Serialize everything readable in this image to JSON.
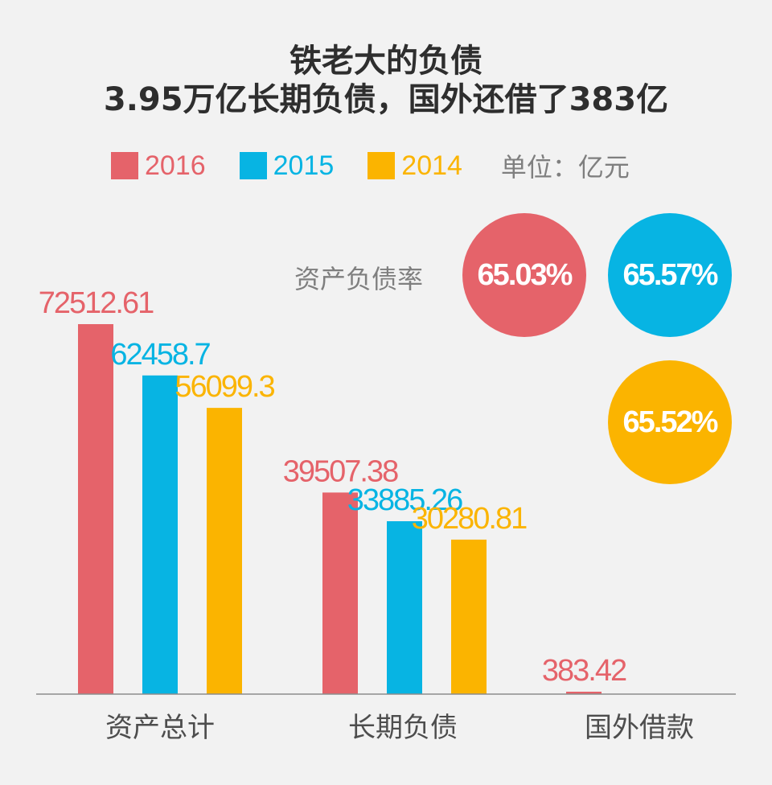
{
  "title": {
    "line1": "铁老大的负债",
    "line2": "3.95万亿长期负债，国外还借了383亿"
  },
  "legend": {
    "unit": "单位：亿元"
  },
  "debt_ratio": {
    "label": "资产负债率",
    "items": [
      {
        "year": "2016",
        "value": "65.03%",
        "color": "#e5636a"
      },
      {
        "year": "2015",
        "value": "65.57%",
        "color": "#07b4e3"
      },
      {
        "year": "2014",
        "value": "65.52%",
        "color": "#fbb400"
      }
    ]
  },
  "colors": {
    "2016": "#e5636a",
    "2015": "#07b4e3",
    "2014": "#fbb400",
    "axis": "#8c8c8c"
  },
  "chart_data": {
    "type": "bar",
    "categories": [
      "资产总计",
      "长期负债",
      "国外借款"
    ],
    "series": [
      {
        "name": "2016",
        "values": [
          72512.61,
          39507.38,
          383.42
        ],
        "labels": [
          "72512.61",
          "39507.38",
          "383.42"
        ]
      },
      {
        "name": "2015",
        "values": [
          62458.7,
          33885.26,
          null
        ],
        "labels": [
          "62458.7",
          "33885.26",
          ""
        ]
      },
      {
        "name": "2014",
        "values": [
          56099.3,
          30280.81,
          null
        ],
        "labels": [
          "56099.3",
          "30280.81",
          ""
        ]
      }
    ],
    "ylim": [
      0,
      72512.61
    ],
    "grid": false,
    "legend_position": "top"
  }
}
